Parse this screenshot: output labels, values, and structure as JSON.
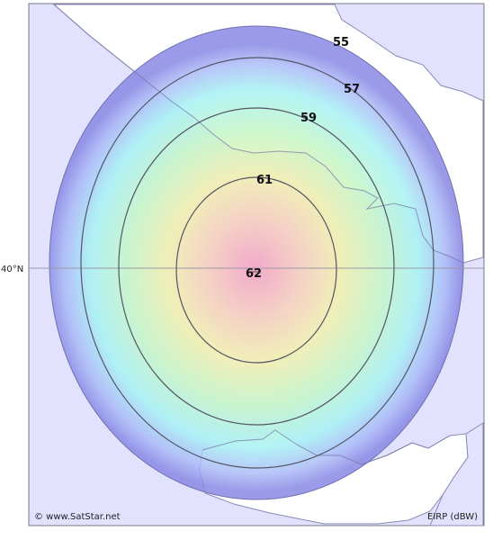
{
  "map": {
    "latitude_label": "40°N",
    "credit": "© www.SatStar.net",
    "legend_unit": "EIRP (dBW)",
    "contours": [
      {
        "value": "55"
      },
      {
        "value": "57"
      },
      {
        "value": "59"
      },
      {
        "value": "61"
      },
      {
        "value": "62"
      }
    ],
    "colors": {
      "land": "#e2e2ff",
      "water": "#ffffff",
      "coast": "#8a8ab8",
      "contour_line": "#555566",
      "grid_line": "#9a9aa8"
    }
  }
}
